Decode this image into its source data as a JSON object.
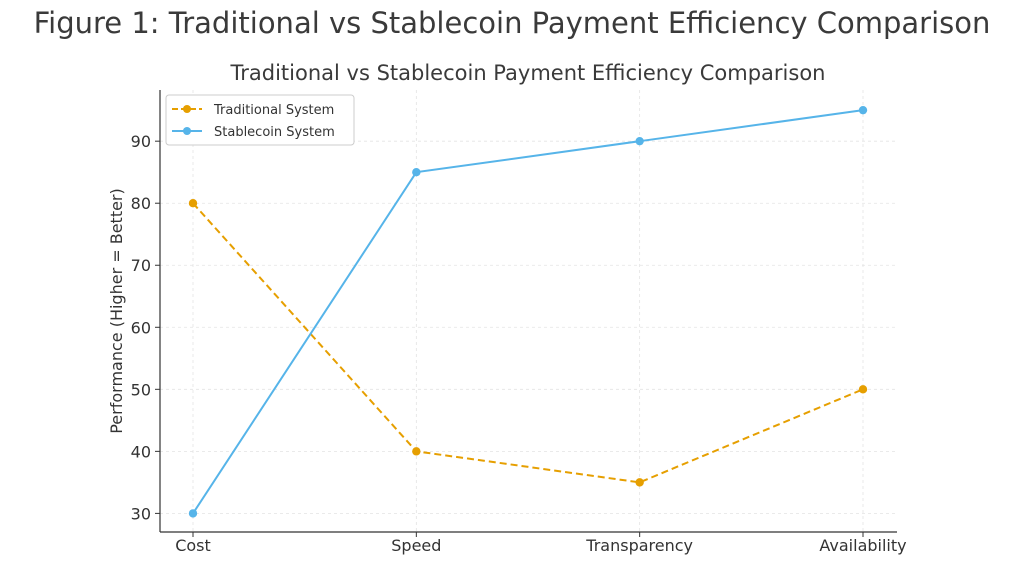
{
  "figure_title": "Figure 1: Traditional vs Stablecoin Payment Efficiency Comparison",
  "chart_data": {
    "type": "line",
    "title": "Traditional vs Stablecoin Payment Efficiency Comparison",
    "xlabel": "",
    "ylabel": "Performance (Higher = Better)",
    "categories": [
      "Cost",
      "Speed",
      "Transparency",
      "Availability"
    ],
    "yticks": [
      30,
      40,
      50,
      60,
      70,
      80,
      90
    ],
    "ylim": [
      27,
      98.25
    ],
    "grid": true,
    "legend_position": "top-left",
    "series": [
      {
        "name": "Traditional System",
        "values": [
          80,
          40,
          35,
          50
        ],
        "color": "#E69F00",
        "line_style": "dashed",
        "marker": "circle"
      },
      {
        "name": "Stablecoin System",
        "values": [
          30,
          85,
          90,
          95
        ],
        "color": "#56B4E9",
        "line_style": "solid",
        "marker": "circle"
      }
    ]
  }
}
